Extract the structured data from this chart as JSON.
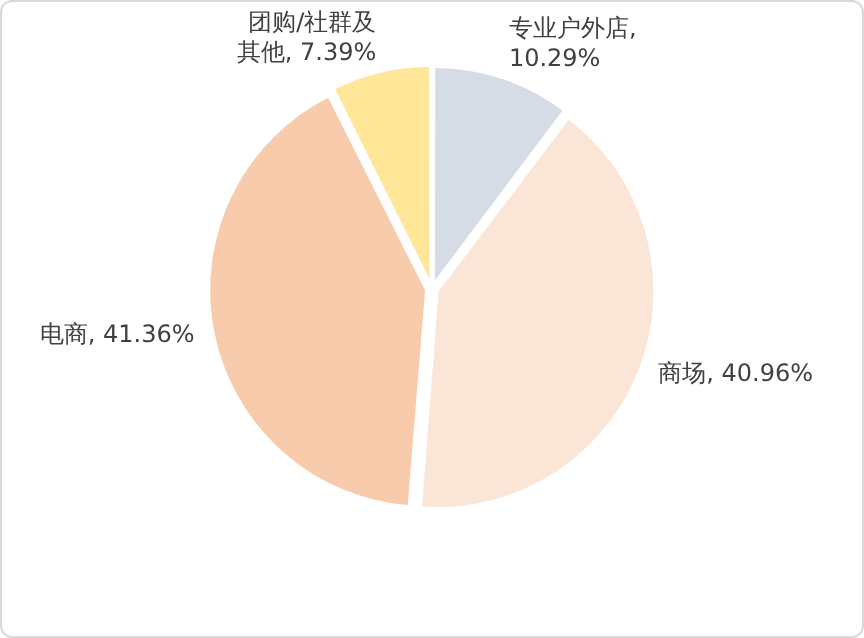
{
  "chart_data": {
    "type": "pie",
    "categories": [
      "专业户外店",
      "商场",
      "电商",
      "团购/社群及其他"
    ],
    "values": [
      10.29,
      40.96,
      41.36,
      7.39
    ],
    "value_labels": [
      ", 10.29%",
      ", 40.96%",
      ", 41.36%",
      ", 7.39%"
    ],
    "colors": [
      "#d6dce5",
      "#fbe5d6",
      "#f8cbad",
      "#ffe699"
    ],
    "legend": false
  }
}
